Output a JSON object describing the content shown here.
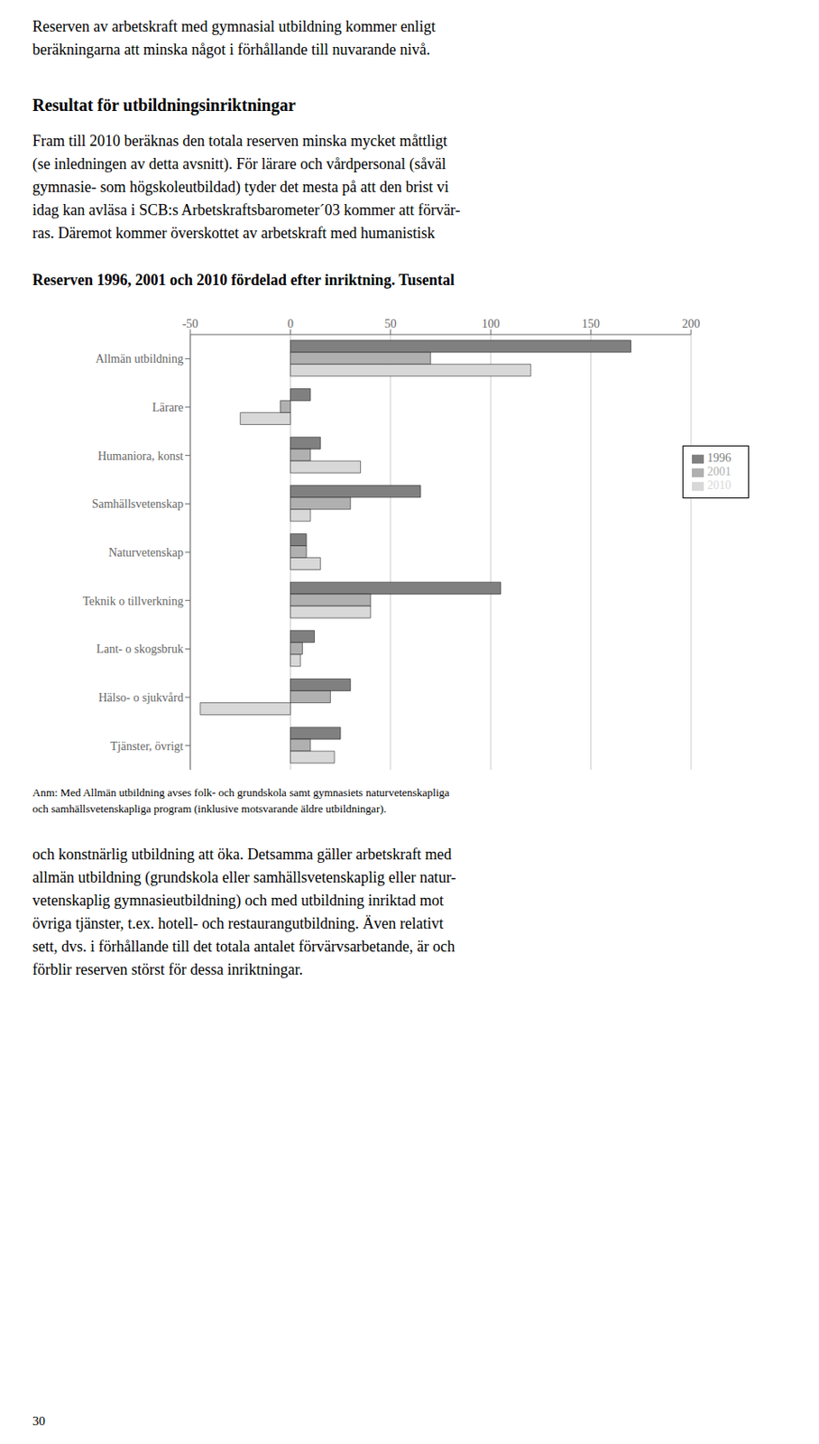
{
  "chart_data": {
    "type": "bar",
    "orientation": "horizontal",
    "title": "Reserven 1996, 2001 och 2010 fördelad efter inriktning. Tusental",
    "categories": [
      "Allmän utbildning",
      "Lärare",
      "Humaniora, konst",
      "Samhällsvetenskap",
      "Naturvetenskap",
      "Teknik o tillverkning",
      "Lant- o skogsbruk",
      "Hälso- o sjukvård",
      "Tjänster, övrigt"
    ],
    "series": [
      {
        "name": "1996",
        "color": "#808080",
        "values": [
          170,
          10,
          15,
          65,
          8,
          105,
          12,
          30,
          25
        ]
      },
      {
        "name": "2001",
        "color": "#b0b0b0",
        "values": [
          70,
          -5,
          10,
          30,
          8,
          40,
          6,
          20,
          10
        ]
      },
      {
        "name": "2010",
        "color": "#d8d8d8",
        "values": [
          120,
          -25,
          35,
          10,
          15,
          40,
          5,
          -45,
          22
        ]
      }
    ],
    "xlim": [
      -50,
      200
    ],
    "xticks": [
      -50,
      0,
      50,
      100,
      150,
      200
    ],
    "grid": true,
    "legend": "upper right",
    "annotations": [
      "Reserven av arbetskraft med gymnasial utbildning kommer enligt\nberäkningarna att minska något i förhållande till nuvarande nivå.",
      "Resultat för utbildningsinriktningar",
      "Fram till 2010 beräknas den totala reserven minska mycket måttligt\n(se inledningen av detta avsnitt). För lärare och vårdpersonal (såväl\ngymnasie- som högskoleutbildad) tyder det mesta på att den brist vi\nidag kan avläsa i SCB:s Arbetskraftsbarometer´03 kommer att förvär-\nras. Däremot kommer överskottet av arbetskraft med humanistisk",
      "Anm: Med Allmän utbildning avses folk- och grundskola samt gymnasiets naturvetenskapliga\noch samhällsvetenskapliga program (inklusive motsvarande äldre utbildningar).",
      "och konstnärlig utbildning att öka. Detsamma gäller arbetskraft med\nallmän utbildning (grundskola eller samhällsvetenskaplig eller natur-\nvetenskaplig gymnasieutbildning) och med utbildning inriktad mot\növriga tjänster, t.ex. hotell- och restaurangutbildning. Även relativt\nsett, dvs. i förhållande till det totala antalet förvärvsarbetande, är och\nförblir reserven störst för dessa inriktningar.",
      "30"
    ]
  }
}
